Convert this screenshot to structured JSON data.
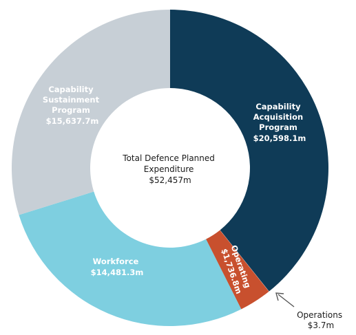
{
  "chart_data": {
    "type": "pie",
    "title": "",
    "center_label": [
      "Total Defence Planned",
      "Expenditure",
      "$52,457m"
    ],
    "total": 52457,
    "unit": "$m",
    "colors": {
      "capability_acquisition": "#0f3b57",
      "operating": "#c8502e",
      "operations": "#c8502e",
      "workforce": "#7ecfe0",
      "capability_sustainment": "#c7cfd6",
      "label_on_dark": "#ffffff",
      "center_text": "#1a1a1a",
      "arrow": "#555555"
    },
    "slices": [
      {
        "key": "capability_acquisition",
        "label_lines": [
          "Capability",
          "Acquisition",
          "Program",
          "$20,598.1m"
        ],
        "value": 20598.1
      },
      {
        "key": "operations",
        "label_lines": [
          "Operations",
          "$3.7m"
        ],
        "value": 3.7
      },
      {
        "key": "operating",
        "label_lines": [
          "Operating",
          "$1,736.8m"
        ],
        "value": 1736.8
      },
      {
        "key": "workforce",
        "label_lines": [
          "Workforce",
          "$14,481.3m"
        ],
        "value": 14481.3
      },
      {
        "key": "capability_sustainment",
        "label_lines": [
          "Capability",
          "Sustainment",
          "Program",
          "$15,637.7m"
        ],
        "value": 15637.7
      }
    ]
  }
}
